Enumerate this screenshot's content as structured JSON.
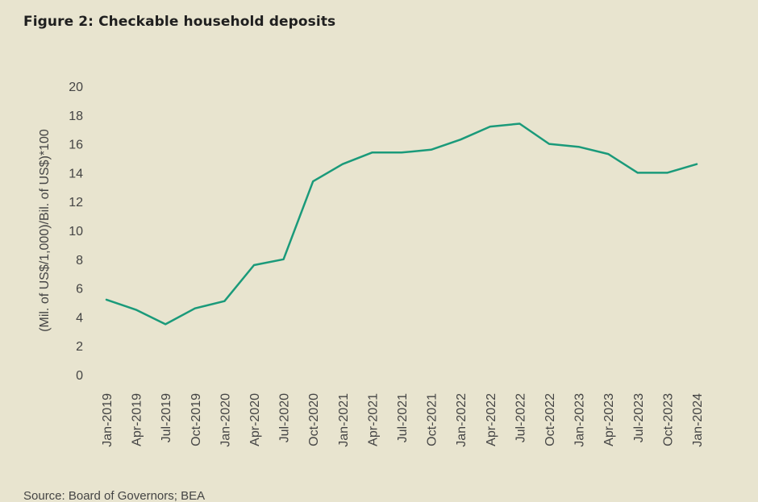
{
  "title": "Figure 2: Checkable household deposits",
  "source": "Source: Board of Governors; BEA",
  "colors": {
    "background": "#e8e4cf",
    "line": "#1a9a7a"
  },
  "chart_data": {
    "type": "line",
    "title": "Figure 2: Checkable household deposits",
    "xlabel": "",
    "ylabel": "(Mil. of US$/1,000)/Bil. of US$)*100",
    "ylim": [
      0,
      20
    ],
    "yticks": [
      "0",
      "2",
      "4",
      "6",
      "8",
      "10",
      "12",
      "14",
      "16",
      "18",
      "20"
    ],
    "grid": false,
    "legend": "none",
    "categories": [
      "Jan-2019",
      "Apr-2019",
      "Jul-2019",
      "Oct-2019",
      "Jan-2020",
      "Apr-2020",
      "Jul-2020",
      "Oct-2020",
      "Jan-2021",
      "Apr-2021",
      "Jul-2021",
      "Oct-2021",
      "Jan-2022",
      "Apr-2022",
      "Jul-2022",
      "Oct-2022",
      "Jan-2023",
      "Apr-2023",
      "Jul-2023",
      "Oct-2023",
      "Jan-2024"
    ],
    "series": [
      {
        "values": [
          5.2,
          4.5,
          3.5,
          4.6,
          5.1,
          7.6,
          8.0,
          13.4,
          14.6,
          15.4,
          15.4,
          15.6,
          16.3,
          17.2,
          17.4,
          16.0,
          15.8,
          15.3,
          14.0,
          14.0,
          14.6
        ]
      }
    ]
  }
}
